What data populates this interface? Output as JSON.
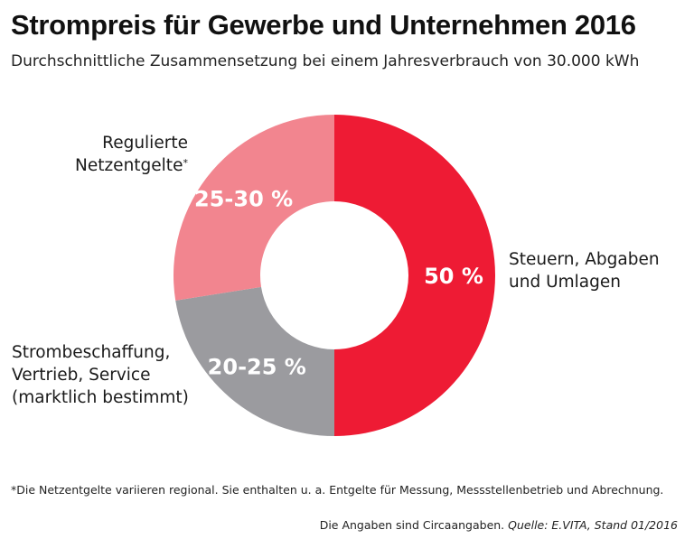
{
  "chart_data": {
    "type": "pie",
    "variant": "donut",
    "title": "Strompreis für Gewerbe und Unternehmen 2016",
    "subtitle": "Durchschnittliche Zusammensetzung bei einem Jahresverbrauch von 30.000 kWh",
    "slices": [
      {
        "name": "Steuern, Abgaben und Umlagen",
        "label_lines": [
          "Steuern, Abgaben",
          "und Umlagen"
        ],
        "value": 50,
        "value_label": "50 %",
        "color": "#ee1b34"
      },
      {
        "name": "Strombeschaffung, Vertrieb, Service (marktlich bestimmt)",
        "label_lines": [
          "Strombeschaffung,",
          "Vertrieb, Service",
          "(marktlich bestimmt)"
        ],
        "value": 22.5,
        "value_label": "20-25 %",
        "color": "#9b9b9f"
      },
      {
        "name": "Regulierte Netzentgelte",
        "label_lines": [
          "Regulierte",
          "Netzentgelte"
        ],
        "footnote_marker": "*",
        "value": 27.5,
        "value_label": "25-30 %",
        "color": "#f2858f"
      }
    ],
    "footnote": "*Die Netzentgelte variieren regional. Sie enthalten u. a. Entgelte für Messung, Messstellenbetrieb und Abrechnung.",
    "source_prefix": "Die Angaben sind Circaangaben.",
    "source": "Quelle: E.VITA, Stand 01/2016"
  }
}
